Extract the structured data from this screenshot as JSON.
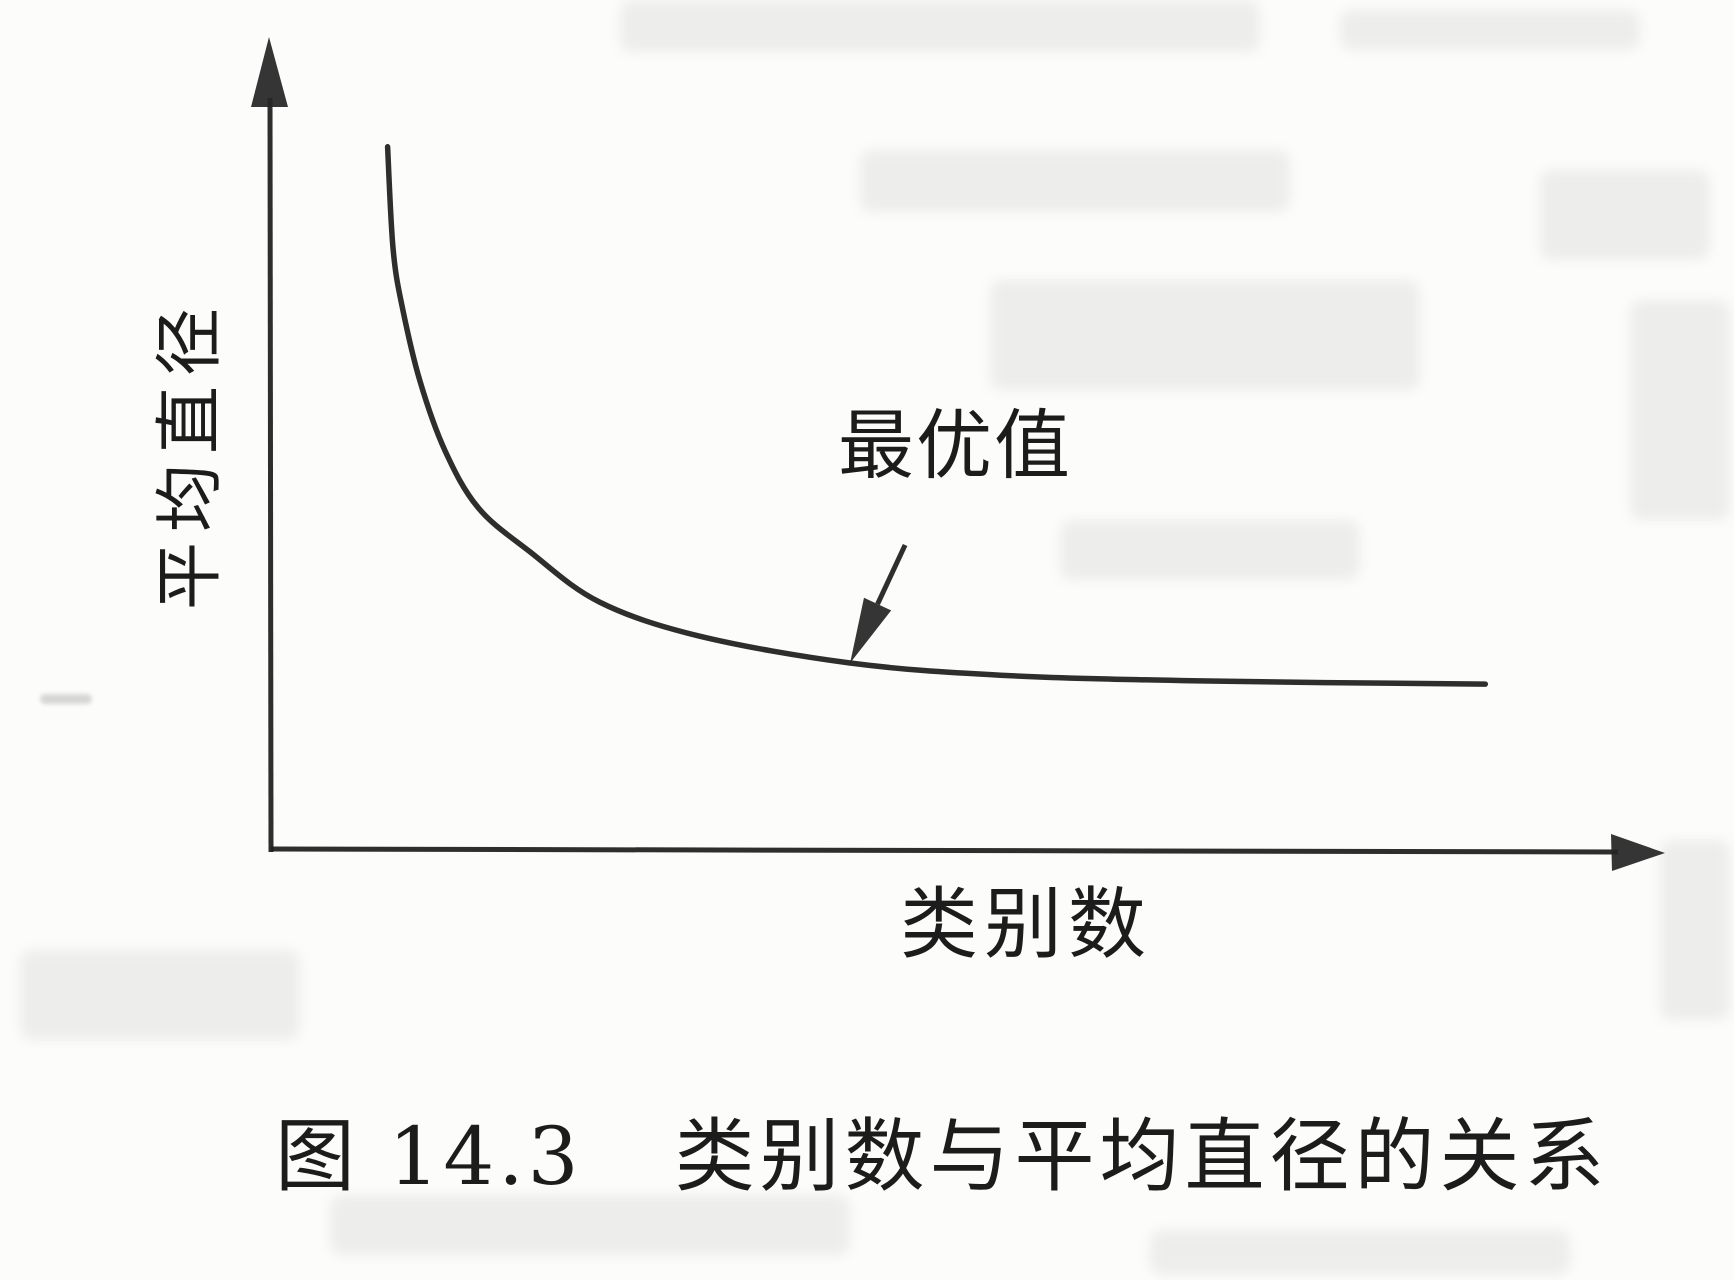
{
  "figure": {
    "y_axis_label": "平均直径",
    "x_axis_label": "类别数",
    "annotation_label": "最优值",
    "caption_number": "图 14.3",
    "caption_title": "类别数与平均直径的关系"
  },
  "colors": {
    "ink": "#1e1e1e",
    "paper": "#fcfcfa"
  },
  "chart_data": {
    "type": "line",
    "title": "图 14.3 类别数与平均直径的关系",
    "xlabel": "类别数",
    "ylabel": "平均直径",
    "grid": false,
    "legend": false,
    "axes_numeric": false,
    "axis_units": "normalized 0-1 (no tick labels shown in figure)",
    "xlim": [
      0,
      1
    ],
    "ylim": [
      0,
      1
    ],
    "description": "单调递减的双曲线型曲线：类别数增大时平均直径先快速下降，随后趋于平缓；肘部处标注最优值",
    "series": [
      {
        "name": "平均直径",
        "x": [
          0.083,
          0.087,
          0.094,
          0.106,
          0.124,
          0.148,
          0.185,
          0.235,
          0.307,
          0.415,
          0.523,
          0.666,
          0.871
        ],
        "y": [
          0.865,
          0.738,
          0.664,
          0.578,
          0.492,
          0.421,
          0.367,
          0.305,
          0.263,
          0.23,
          0.215,
          0.208,
          0.204
        ]
      }
    ],
    "annotations": [
      {
        "text": "最优值",
        "arrow": true,
        "target_x": 0.415,
        "target_y": 0.23
      }
    ]
  }
}
